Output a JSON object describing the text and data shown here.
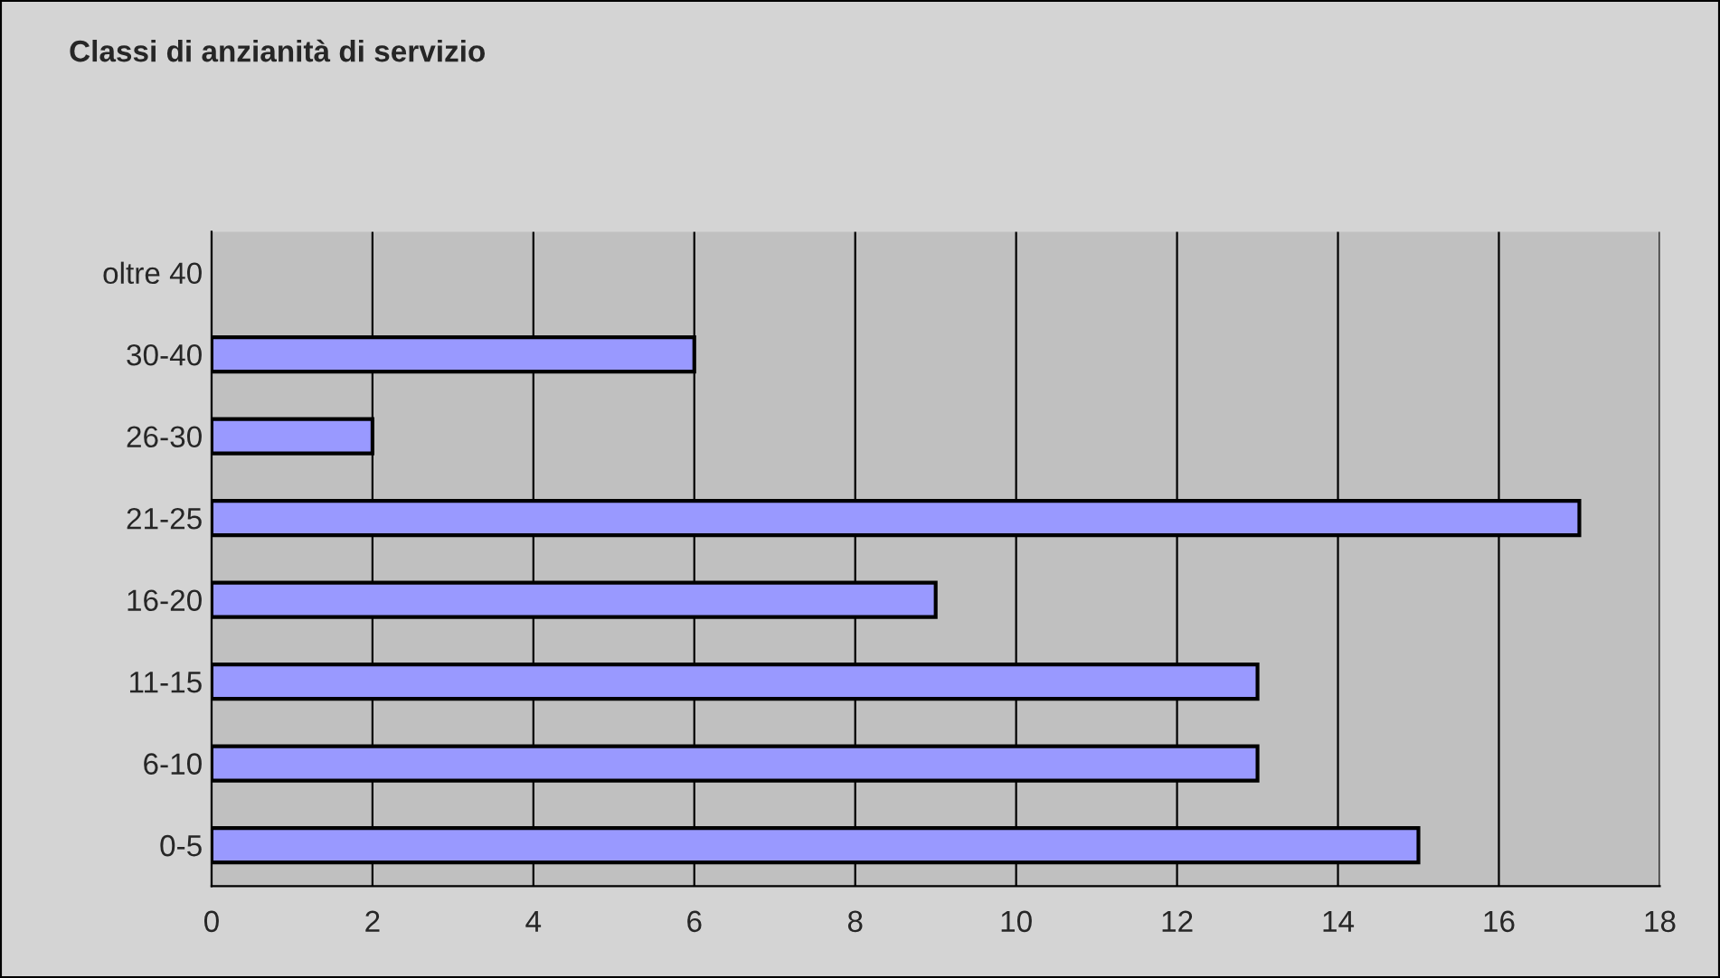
{
  "chart_data": {
    "type": "bar",
    "orientation": "horizontal",
    "title": "Classi di anzianità di servizio",
    "categories": [
      "oltre 40",
      "30-40",
      "26-30",
      "21-25",
      "16-20",
      "11-15",
      "6-10",
      "0-5"
    ],
    "values": [
      null,
      6,
      2,
      17,
      9,
      13,
      13,
      15
    ],
    "color": "#9999ff",
    "xlim": [
      0,
      18
    ],
    "xticks": [
      0,
      2,
      4,
      6,
      8,
      10,
      12,
      14,
      16,
      18
    ],
    "grid": "x",
    "legend": false
  }
}
